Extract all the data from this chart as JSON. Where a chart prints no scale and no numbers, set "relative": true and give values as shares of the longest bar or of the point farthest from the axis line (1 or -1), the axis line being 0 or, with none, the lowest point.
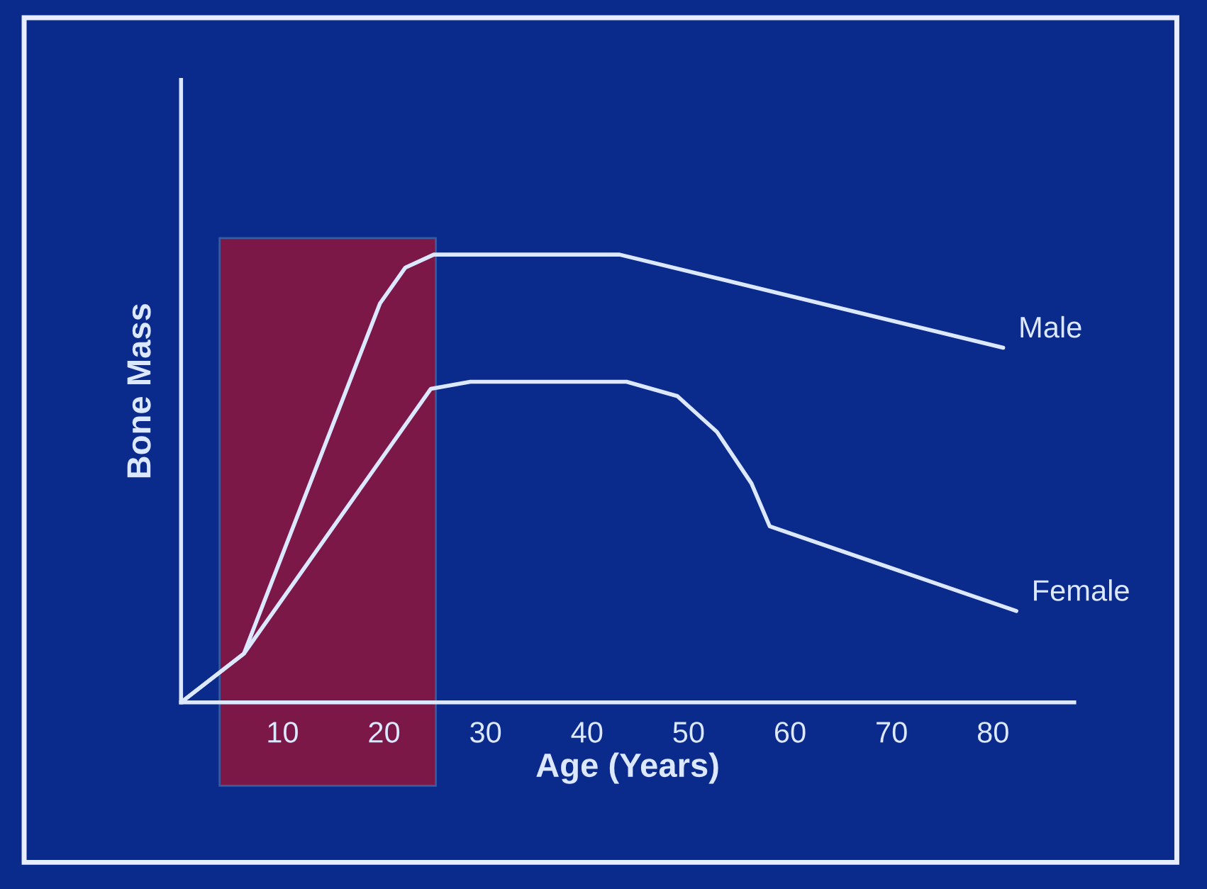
{
  "chart_data": {
    "type": "line",
    "relative": true,
    "xlabel": "Age (Years)",
    "ylabel": "Bone Mass",
    "xlim": [
      0,
      88
    ],
    "xticks": [
      10,
      20,
      30,
      40,
      50,
      60,
      70,
      80
    ],
    "series": [
      {
        "name": "Male",
        "color": "#dce8ff",
        "x": [
          0,
          6.2,
          19.6,
          22.1,
          24.9,
          43.2,
          81.0
        ],
        "values": [
          0,
          0.109,
          0.891,
          0.971,
          1.0,
          1.0,
          0.792
        ]
      },
      {
        "name": "Female",
        "color": "#dce8ff",
        "x": [
          0,
          6.2,
          24.6,
          28.5,
          43.9,
          48.9,
          52.8,
          56.2,
          58.0,
          82.3
        ],
        "values": [
          0,
          0.109,
          0.7,
          0.716,
          0.716,
          0.684,
          0.604,
          0.489,
          0.393,
          0.204
        ]
      }
    ],
    "bands": [
      {
        "axis": "x",
        "from": 3.8,
        "to": 25.1,
        "color": "#7b1848"
      }
    ],
    "grid": false,
    "legend": false,
    "marker": "none",
    "line_style": "solid"
  }
}
